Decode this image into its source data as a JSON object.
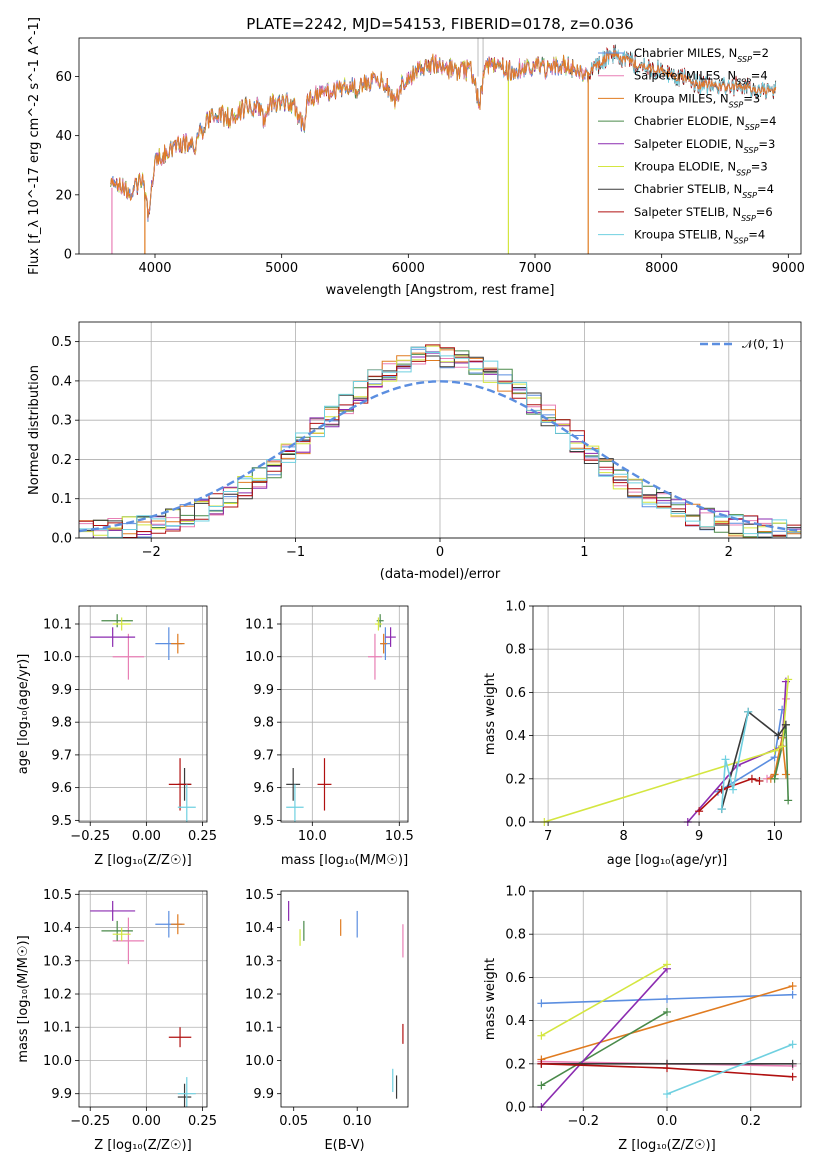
{
  "title": "PLATE=2242, MJD=54153, FIBERID=0178, z=0.036",
  "colors": {
    "Chabrier MILES": "#5b8ee0",
    "Salpeter MILES": "#e87fb5",
    "Kroupa MILES": "#e07b20",
    "Chabrier ELODIE": "#4a8a4a",
    "Salpeter ELODIE": "#8b2bb0",
    "Kroupa ELODIE": "#d4e640",
    "Chabrier STELIB": "#3a3a3a",
    "Salpeter STELIB": "#b01010",
    "Kroupa STELIB": "#6fd0e0",
    "normal": "#5b8ee0"
  },
  "chart_data": [
    {
      "id": "spectrum",
      "type": "line",
      "xlabel": "wavelength [Angstrom, rest frame]",
      "ylabel": "Flux [f_λ 10^-17 erg cm^-2 s^-1 A^-1]",
      "xlim": [
        3400,
        9100
      ],
      "ylim": [
        0,
        73
      ],
      "xticks": [
        4000,
        5000,
        6000,
        7000,
        8000,
        9000
      ],
      "yticks": [
        0,
        20,
        40,
        60
      ],
      "legend_position": "right",
      "legend": [
        {
          "model": "Chabrier MILES",
          "text": "Chabrier MILES, N",
          "n": "=2"
        },
        {
          "model": "Salpeter MILES",
          "text": "Salpeter MILES, N",
          "n": "=4"
        },
        {
          "model": "Kroupa MILES",
          "text": "Kroupa MILES, N",
          "n": "=3"
        },
        {
          "model": "Chabrier ELODIE",
          "text": "Chabrier ELODIE, N",
          "n": "=4"
        },
        {
          "model": "Salpeter ELODIE",
          "text": "Salpeter ELODIE, N",
          "n": "=3"
        },
        {
          "model": "Kroupa ELODIE",
          "text": "Kroupa ELODIE, N",
          "n": "=3"
        },
        {
          "model": "Chabrier STELIB",
          "text": "Chabrier STELIB, N",
          "n": "=4"
        },
        {
          "model": "Salpeter STELIB",
          "text": "Salpeter STELIB, N",
          "n": "=6"
        },
        {
          "model": "Kroupa STELIB",
          "text": "Kroupa STELIB, N",
          "n": "=4"
        }
      ],
      "spectrum": {
        "wavelength": [
          3650,
          3700,
          3800,
          3900,
          3950,
          4000,
          4100,
          4200,
          4300,
          4400,
          4500,
          4600,
          4700,
          4800,
          4861,
          4900,
          5000,
          5100,
          5175,
          5200,
          5300,
          5400,
          5500,
          5600,
          5700,
          5800,
          5890,
          5950,
          6000,
          6100,
          6200,
          6300,
          6400,
          6500,
          6563,
          6600,
          6700,
          6800,
          6900,
          7000,
          7100,
          7200,
          7300,
          7400,
          7500,
          7600,
          7700,
          7800,
          7900,
          8000,
          8100,
          8200,
          8300,
          8400,
          8500,
          8600,
          8700,
          8800,
          8900
        ],
        "flux": [
          22,
          24,
          20,
          26,
          12,
          32,
          34,
          38,
          36,
          44,
          47,
          46,
          49,
          50,
          46,
          50,
          52,
          50,
          42,
          53,
          54,
          55,
          57,
          56,
          58,
          59,
          52,
          58,
          60,
          62,
          64,
          63,
          62,
          62,
          50,
          63,
          64,
          62,
          63,
          64,
          62,
          64,
          63,
          61,
          64,
          68,
          66,
          64,
          63,
          62,
          60,
          59,
          57,
          58,
          56,
          57,
          56,
          55,
          55
        ]
      },
      "cutoffs": [
        {
          "model": "Salpeter MILES",
          "wavelength": 3660
        },
        {
          "model": "Kroupa MILES",
          "wavelength": 3920
        },
        {
          "model": "Kroupa ELODIE",
          "wavelength": 6790
        },
        {
          "model": "Kroupa MILES",
          "wavelength": 7420
        }
      ]
    },
    {
      "id": "residuals",
      "type": "histogram",
      "xlabel": "(data-model)/error",
      "ylabel": "Normed distribution",
      "xlim": [
        -2.5,
        2.5
      ],
      "ylim": [
        0,
        0.55
      ],
      "xticks": [
        -2,
        -1,
        0,
        1,
        2
      ],
      "yticks": [
        0.0,
        0.1,
        0.2,
        0.3,
        0.4,
        0.5
      ],
      "grid": true,
      "bin_width": 0.1,
      "legend": "𝒩(0, 1)",
      "legend_position": "top-right",
      "normal_curve": {
        "mean": 0,
        "sigma": 1
      }
    },
    {
      "id": "age-vs-Z",
      "type": "errorbar",
      "xlabel": "Z [log₁₀(Z/Z☉)]",
      "ylabel": "age  [log₁₀(age/yr)]",
      "xlim": [
        -0.3,
        0.27
      ],
      "ylim": [
        9.495,
        10.155
      ],
      "xticks": [
        -0.25,
        0.0,
        0.25
      ],
      "yticks": [
        9.5,
        9.6,
        9.7,
        9.8,
        9.9,
        10.0,
        10.1
      ],
      "grid": true,
      "points": [
        {
          "model": "Chabrier MILES",
          "x": 0.1,
          "xerr": 0.06,
          "y": 10.04,
          "yerr": 0.05
        },
        {
          "model": "Salpeter MILES",
          "x": -0.08,
          "xerr": 0.07,
          "y": 10.0,
          "yerr": 0.07
        },
        {
          "model": "Kroupa MILES",
          "x": 0.14,
          "xerr": 0.03,
          "y": 10.04,
          "yerr": 0.03
        },
        {
          "model": "Chabrier ELODIE",
          "x": -0.13,
          "xerr": 0.07,
          "y": 10.11,
          "yerr": 0.02
        },
        {
          "model": "Salpeter ELODIE",
          "x": -0.15,
          "xerr": 0.1,
          "y": 10.06,
          "yerr": 0.03
        },
        {
          "model": "Kroupa ELODIE",
          "x": -0.11,
          "xerr": 0.04,
          "y": 10.1,
          "yerr": 0.02
        },
        {
          "model": "Chabrier STELIB",
          "x": 0.17,
          "xerr": 0.03,
          "y": 9.61,
          "yerr": 0.05
        },
        {
          "model": "Salpeter STELIB",
          "x": 0.15,
          "xerr": 0.05,
          "y": 9.61,
          "yerr": 0.08
        },
        {
          "model": "Kroupa STELIB",
          "x": 0.18,
          "xerr": 0.04,
          "y": 9.54,
          "yerr": 0.07
        }
      ]
    },
    {
      "id": "age-vs-mass",
      "type": "errorbar",
      "xlabel": "mass [log₁₀(M/M☉)]",
      "ylabel": "",
      "xlim": [
        9.82,
        10.55
      ],
      "ylim": [
        9.495,
        10.155
      ],
      "xticks": [
        10.0,
        10.5
      ],
      "yticks": [
        9.5,
        9.6,
        9.7,
        9.8,
        9.9,
        10.0,
        10.1
      ],
      "grid": true,
      "points": [
        {
          "model": "Chabrier MILES",
          "x": 10.42,
          "xerr": 0.03,
          "y": 10.04,
          "yerr": 0.05
        },
        {
          "model": "Salpeter MILES",
          "x": 10.36,
          "xerr": 0.04,
          "y": 10.0,
          "yerr": 0.07
        },
        {
          "model": "Kroupa MILES",
          "x": 10.41,
          "xerr": 0.02,
          "y": 10.04,
          "yerr": 0.03
        },
        {
          "model": "Chabrier ELODIE",
          "x": 10.39,
          "xerr": 0.02,
          "y": 10.11,
          "yerr": 0.02
        },
        {
          "model": "Salpeter ELODIE",
          "x": 10.45,
          "xerr": 0.03,
          "y": 10.06,
          "yerr": 0.03
        },
        {
          "model": "Kroupa ELODIE",
          "x": 10.38,
          "xerr": 0.02,
          "y": 10.1,
          "yerr": 0.02
        },
        {
          "model": "Chabrier STELIB",
          "x": 9.89,
          "xerr": 0.04,
          "y": 9.61,
          "yerr": 0.05
        },
        {
          "model": "Salpeter STELIB",
          "x": 10.07,
          "xerr": 0.04,
          "y": 9.61,
          "yerr": 0.08
        },
        {
          "model": "Kroupa STELIB",
          "x": 9.9,
          "xerr": 0.05,
          "y": 9.54,
          "yerr": 0.07
        }
      ]
    },
    {
      "id": "mass-weight-vs-age",
      "type": "line",
      "xlabel": "age  [log₁₀(age/yr)]",
      "ylabel": "mass weight",
      "xlim": [
        6.8,
        10.35
      ],
      "ylim": [
        0,
        1
      ],
      "xticks": [
        7,
        8,
        9,
        10
      ],
      "yticks": [
        0.0,
        0.2,
        0.4,
        0.6,
        0.8,
        1.0
      ],
      "grid": true,
      "series": [
        {
          "model": "Chabrier MILES",
          "x": [
            9.25,
            10.0,
            10.1
          ],
          "y": [
            0.14,
            0.3,
            0.52
          ]
        },
        {
          "model": "Salpeter MILES",
          "x": [
            9.9,
            10.0,
            10.1,
            10.15
          ],
          "y": [
            0.2,
            0.22,
            0.35,
            0.57
          ]
        },
        {
          "model": "Kroupa MILES",
          "x": [
            9.95,
            10.0,
            10.1,
            10.15
          ],
          "y": [
            0.2,
            0.22,
            0.39,
            0.22
          ]
        },
        {
          "model": "Chabrier ELODIE",
          "x": [
            10.0,
            10.1,
            10.15,
            10.18
          ],
          "y": [
            0.2,
            0.35,
            0.45,
            0.1
          ]
        },
        {
          "model": "Salpeter ELODIE",
          "x": [
            8.85,
            9.5,
            10.1,
            10.15
          ],
          "y": [
            0.0,
            0.26,
            0.35,
            0.65
          ]
        },
        {
          "model": "Kroupa ELODIE",
          "x": [
            6.95,
            10.0,
            10.1,
            10.18
          ],
          "y": [
            0.0,
            0.33,
            0.35,
            0.66
          ]
        },
        {
          "model": "Chabrier STELIB",
          "x": [
            9.3,
            9.65,
            10.05,
            10.15
          ],
          "y": [
            0.06,
            0.51,
            0.4,
            0.45
          ]
        },
        {
          "model": "Salpeter STELIB",
          "x": [
            9.0,
            9.3,
            9.7,
            9.8
          ],
          "y": [
            0.05,
            0.15,
            0.2,
            0.19
          ]
        },
        {
          "model": "Kroupa STELIB",
          "x": [
            9.3,
            9.35,
            9.45,
            9.65
          ],
          "y": [
            0.06,
            0.29,
            0.15,
            0.51
          ]
        }
      ]
    },
    {
      "id": "mass-vs-Z",
      "type": "errorbar",
      "xlabel": "Z [log₁₀(Z/Z☉)]",
      "ylabel": "mass [log₁₀(M/M☉)]",
      "xlim": [
        -0.3,
        0.27
      ],
      "ylim": [
        9.86,
        10.51
      ],
      "xticks": [
        -0.25,
        0.0,
        0.25
      ],
      "yticks": [
        9.9,
        10.0,
        10.1,
        10.2,
        10.3,
        10.4,
        10.5
      ],
      "grid": true,
      "points": [
        {
          "model": "Chabrier MILES",
          "x": 0.1,
          "xerr": 0.06,
          "y": 10.41,
          "yerr": 0.04
        },
        {
          "model": "Salpeter MILES",
          "x": -0.08,
          "xerr": 0.07,
          "y": 10.36,
          "yerr": 0.07
        },
        {
          "model": "Kroupa MILES",
          "x": 0.14,
          "xerr": 0.03,
          "y": 10.41,
          "yerr": 0.03
        },
        {
          "model": "Chabrier ELODIE",
          "x": -0.13,
          "xerr": 0.07,
          "y": 10.39,
          "yerr": 0.03
        },
        {
          "model": "Salpeter ELODIE",
          "x": -0.15,
          "xerr": 0.1,
          "y": 10.45,
          "yerr": 0.03
        },
        {
          "model": "Kroupa ELODIE",
          "x": -0.11,
          "xerr": 0.04,
          "y": 10.38,
          "yerr": 0.02
        },
        {
          "model": "Chabrier STELIB",
          "x": 0.17,
          "xerr": 0.03,
          "y": 9.89,
          "yerr": 0.04
        },
        {
          "model": "Salpeter STELIB",
          "x": 0.15,
          "xerr": 0.05,
          "y": 10.07,
          "yerr": 0.03
        },
        {
          "model": "Kroupa STELIB",
          "x": 0.18,
          "xerr": 0.04,
          "y": 9.9,
          "yerr": 0.05
        }
      ]
    },
    {
      "id": "mass-vs-ebv",
      "type": "errorbar",
      "xlabel": "E(B-V)",
      "ylabel": "",
      "xlim": [
        0.04,
        0.14
      ],
      "ylim": [
        9.86,
        10.51
      ],
      "xticks": [
        0.05,
        0.1
      ],
      "yticks": [
        9.9,
        10.0,
        10.1,
        10.2,
        10.3,
        10.4,
        10.5
      ],
      "grid": false,
      "points": [
        {
          "model": "Chabrier MILES",
          "x": 0.1,
          "y": 10.41,
          "yerr": 0.04
        },
        {
          "model": "Salpeter MILES",
          "x": 0.136,
          "y": 10.36,
          "yerr": 0.05
        },
        {
          "model": "Kroupa MILES",
          "x": 0.087,
          "y": 10.4,
          "yerr": 0.025
        },
        {
          "model": "Chabrier ELODIE",
          "x": 0.058,
          "y": 10.39,
          "yerr": 0.03
        },
        {
          "model": "Salpeter ELODIE",
          "x": 0.046,
          "y": 10.45,
          "yerr": 0.03
        },
        {
          "model": "Kroupa ELODIE",
          "x": 0.055,
          "y": 10.37,
          "yerr": 0.025
        },
        {
          "model": "Chabrier STELIB",
          "x": 0.131,
          "y": 9.92,
          "yerr": 0.035
        },
        {
          "model": "Salpeter STELIB",
          "x": 0.136,
          "y": 10.08,
          "yerr": 0.03
        },
        {
          "model": "Kroupa STELIB",
          "x": 0.128,
          "y": 9.94,
          "yerr": 0.035
        }
      ]
    },
    {
      "id": "mass-weight-vs-Z",
      "type": "line",
      "xlabel": "Z [log₁₀(Z/Z☉)]",
      "ylabel": "mass weight",
      "xlim": [
        -0.32,
        0.32
      ],
      "ylim": [
        0,
        1
      ],
      "xticks": [
        -0.2,
        0.0,
        0.2
      ],
      "yticks": [
        0.0,
        0.2,
        0.4,
        0.6,
        0.8,
        1.0
      ],
      "grid": true,
      "series": [
        {
          "model": "Chabrier MILES",
          "x": [
            -0.3,
            0.0,
            0.3
          ],
          "y": [
            0.48,
            0.5,
            0.52
          ]
        },
        {
          "model": "Salpeter MILES",
          "x": [
            -0.3,
            0.0,
            0.3
          ],
          "y": [
            0.21,
            0.2,
            0.19
          ]
        },
        {
          "model": "Kroupa MILES",
          "x": [
            -0.3,
            0.3
          ],
          "y": [
            0.22,
            0.56
          ]
        },
        {
          "model": "Chabrier ELODIE",
          "x": [
            -0.3,
            0.0
          ],
          "y": [
            0.1,
            0.44
          ]
        },
        {
          "model": "Salpeter ELODIE",
          "x": [
            -0.3,
            0.0
          ],
          "y": [
            0.0,
            0.64
          ]
        },
        {
          "model": "Kroupa ELODIE",
          "x": [
            -0.3,
            0.0
          ],
          "y": [
            0.33,
            0.66
          ]
        },
        {
          "model": "Chabrier STELIB",
          "x": [
            -0.3,
            0.0,
            0.3
          ],
          "y": [
            0.2,
            0.2,
            0.2
          ]
        },
        {
          "model": "Salpeter STELIB",
          "x": [
            -0.3,
            0.0,
            0.3
          ],
          "y": [
            0.2,
            0.18,
            0.14
          ]
        },
        {
          "model": "Kroupa STELIB",
          "x": [
            0.0,
            0.3
          ],
          "y": [
            0.06,
            0.29
          ]
        }
      ]
    }
  ]
}
